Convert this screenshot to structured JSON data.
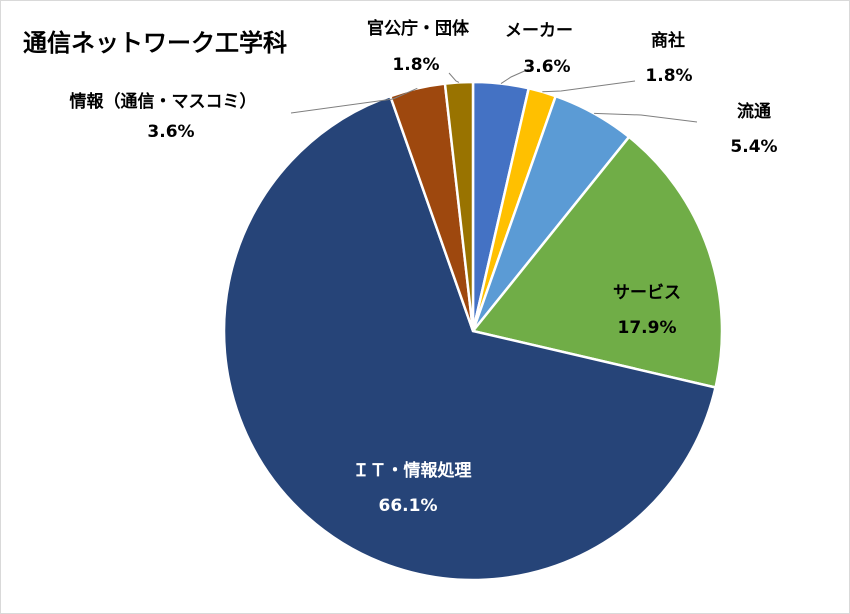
{
  "chart_data": {
    "type": "pie",
    "title": "通信ネットワーク工学科",
    "start_angle_deg": 0,
    "direction": "clockwise",
    "legend": "none",
    "slices": [
      {
        "name": "メーカー",
        "value": 3.6,
        "label": "3.6%",
        "color": "#4472c4"
      },
      {
        "name": "商社",
        "value": 1.8,
        "label": "1.8%",
        "color": "#ffc000"
      },
      {
        "name": "流通",
        "value": 5.4,
        "label": "5.4%",
        "color": "#5b9bd5"
      },
      {
        "name": "サービス",
        "value": 17.9,
        "label": "17.9%",
        "color": "#70ad47"
      },
      {
        "name": "ＩＴ・情報処理",
        "value": 66.1,
        "label": "66.1%",
        "color": "#264478"
      },
      {
        "name": "情報（通信・マスコミ）",
        "value": 3.6,
        "label": "3.6%",
        "color": "#9e480e"
      },
      {
        "name": "官公庁・団体",
        "value": 1.8,
        "label": "1.8%",
        "color": "#997300"
      }
    ]
  }
}
